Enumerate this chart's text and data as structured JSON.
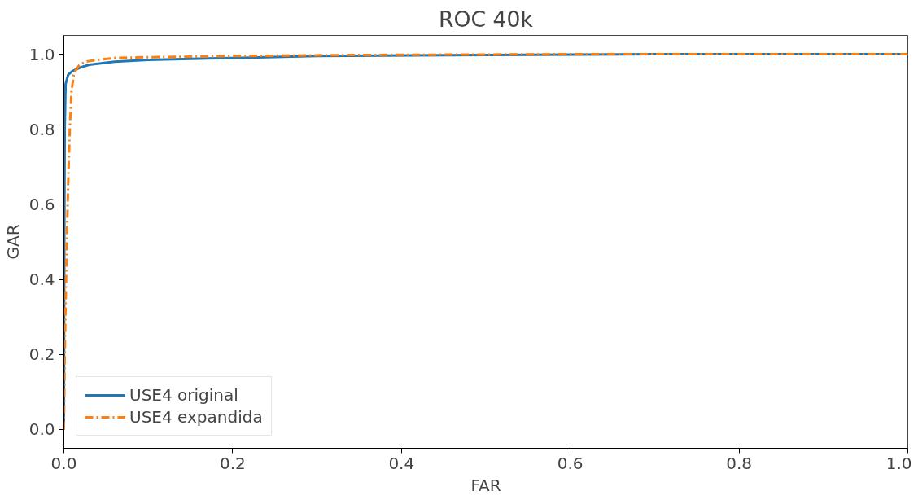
{
  "chart_data": {
    "type": "line",
    "title": "ROC 40k",
    "xlabel": "FAR",
    "ylabel": "GAR",
    "xlim": [
      0,
      1
    ],
    "ylim": [
      -0.05,
      1.05
    ],
    "xticks": [
      {
        "value": 0,
        "label": "0.0"
      },
      0.2,
      0.4,
      0.6,
      0.8,
      {
        "value": 1,
        "label": "1.0"
      }
    ],
    "yticks": [
      {
        "value": 0,
        "label": "0.0"
      },
      0.2,
      0.4,
      0.6,
      0.8,
      {
        "value": 1,
        "label": "1.0"
      }
    ],
    "grid": false,
    "legend": "bottom left",
    "series": [
      {
        "name": "USE4 original",
        "color": "#1f77b4",
        "line_style": "solid",
        "x": [
          0,
          0.0005,
          0.001,
          0.002,
          0.005,
          0.01,
          0.02,
          0.03,
          0.06,
          0.1,
          0.2,
          0.3,
          0.5,
          0.7,
          1.0
        ],
        "values": [
          0,
          0.5,
          0.8,
          0.92,
          0.945,
          0.955,
          0.965,
          0.972,
          0.98,
          0.985,
          0.99,
          0.995,
          0.998,
          1.0,
          1.0
        ]
      },
      {
        "name": "USE4 expandida",
        "color": "#ff7f0e",
        "line_style": "dashdot",
        "x": [
          0,
          0.001,
          0.003,
          0.005,
          0.007,
          0.009,
          0.012,
          0.018,
          0.025,
          0.04,
          0.06,
          0.1,
          0.2,
          0.35,
          0.6,
          1.0
        ],
        "values": [
          0,
          0.2,
          0.45,
          0.65,
          0.8,
          0.9,
          0.95,
          0.97,
          0.98,
          0.985,
          0.99,
          0.992,
          0.995,
          0.998,
          1.0,
          1.0
        ]
      }
    ]
  }
}
